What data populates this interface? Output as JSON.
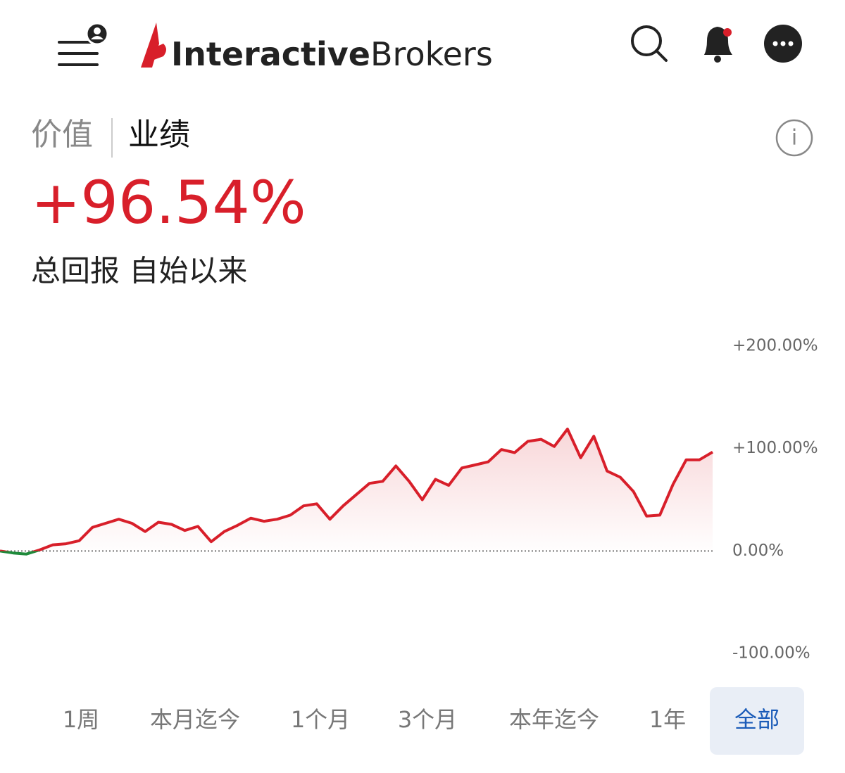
{
  "header": {
    "logo_bold": "Interactive",
    "logo_light": "Brokers"
  },
  "tabs": [
    "价值",
    "业绩"
  ],
  "active_tab": 1,
  "headline": {
    "value": "+96.54%",
    "caption": "总回报 自始以来"
  },
  "chart_data": {
    "type": "line",
    "ylim": [
      -100,
      200
    ],
    "yticks": [
      {
        "value": 200,
        "label": "+200.00%"
      },
      {
        "value": 100,
        "label": "+100.00%"
      },
      {
        "value": 0,
        "label": "0.00%"
      },
      {
        "value": -100,
        "label": "-100.00%"
      }
    ],
    "zero_line": true,
    "series": [
      {
        "color": "#d81f2a",
        "negative_color": "#1f8a3b",
        "values": [
          0,
          -2,
          -3,
          1,
          6,
          7,
          10,
          23,
          27,
          31,
          27,
          19,
          28,
          26,
          20,
          24,
          9,
          19,
          25,
          32,
          29,
          31,
          35,
          44,
          46,
          31,
          44,
          55,
          66,
          68,
          83,
          68,
          50,
          70,
          64,
          81,
          84,
          87,
          99,
          96,
          107,
          109,
          102,
          119,
          91,
          112,
          78,
          72,
          58,
          34,
          35,
          65,
          89,
          89,
          96.54
        ]
      }
    ]
  },
  "ranges": [
    "1周",
    "本月迄今",
    "1个月",
    "3个月",
    "本年迄今",
    "1年",
    "全部"
  ],
  "selected_range": 6
}
